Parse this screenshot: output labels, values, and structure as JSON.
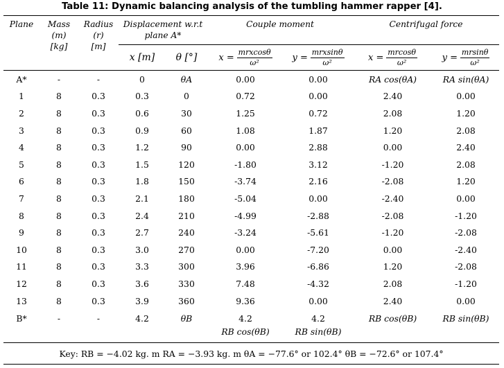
{
  "title": "Table 11: Dynamic balancing analysis of the tumbling hammer rapper [4].",
  "header": {
    "plane": "Plane",
    "mass": "Mass",
    "mass_sym": "(m)",
    "mass_unit": "[kg]",
    "radius": "Radius",
    "radius_sym": "(r)",
    "radius_unit": "[m]",
    "displacement": "Displacement w.r.t",
    "displacement2": "plane A*",
    "couple": "Couple moment",
    "centrifugal": "Centrifugal force",
    "x_label": "x [m]",
    "theta_label": "θ [°]",
    "cm_x_lhs": "x =",
    "cm_x_num": "mrxcosθ",
    "cm_y_lhs": "y =",
    "cm_y_num": "mrxsinθ",
    "den": "ω²",
    "cf_x_lhs": "x =",
    "cf_x_num": "mrcosθ",
    "cf_y_lhs": "y =",
    "cf_y_num": "mrsinθ"
  },
  "rows": [
    [
      "A*",
      "-",
      "-",
      "0",
      "θA",
      "0.00",
      "0.00",
      "RA cos(θA)",
      "RA sin(θA)"
    ],
    [
      "1",
      "8",
      "0.3",
      "0.3",
      "0",
      "0.72",
      "0.00",
      "2.40",
      "0.00"
    ],
    [
      "2",
      "8",
      "0.3",
      "0.6",
      "30",
      "1.25",
      "0.72",
      "2.08",
      "1.20"
    ],
    [
      "3",
      "8",
      "0.3",
      "0.9",
      "60",
      "1.08",
      "1.87",
      "1.20",
      "2.08"
    ],
    [
      "4",
      "8",
      "0.3",
      "1.2",
      "90",
      "0.00",
      "2.88",
      "0.00",
      "2.40"
    ],
    [
      "5",
      "8",
      "0.3",
      "1.5",
      "120",
      "-1.80",
      "3.12",
      "-1.20",
      "2.08"
    ],
    [
      "6",
      "8",
      "0.3",
      "1.8",
      "150",
      "-3.74",
      "2.16",
      "-2.08",
      "1.20"
    ],
    [
      "7",
      "8",
      "0.3",
      "2.1",
      "180",
      "-5.04",
      "0.00",
      "-2.40",
      "0.00"
    ],
    [
      "8",
      "8",
      "0.3",
      "2.4",
      "210",
      "-4.99",
      "-2.88",
      "-2.08",
      "-1.20"
    ],
    [
      "9",
      "8",
      "0.3",
      "2.7",
      "240",
      "-3.24",
      "-5.61",
      "-1.20",
      "-2.08"
    ],
    [
      "10",
      "8",
      "0.3",
      "3.0",
      "270",
      "0.00",
      "-7.20",
      "0.00",
      "-2.40"
    ],
    [
      "11",
      "8",
      "0.3",
      "3.3",
      "300",
      "3.96",
      "-6.86",
      "1.20",
      "-2.08"
    ],
    [
      "12",
      "8",
      "0.3",
      "3.6",
      "330",
      "7.48",
      "-4.32",
      "2.08",
      "-1.20"
    ],
    [
      "13",
      "8",
      "0.3",
      "3.9",
      "360",
      "9.36",
      "0.00",
      "2.40",
      "0.00"
    ]
  ],
  "brow": {
    "plane": "B*",
    "mass": "-",
    "radius": "-",
    "x": "4.2",
    "theta": "θB",
    "cm_x_val": "4.2",
    "cm_x_expr": "RB cos(θB)",
    "cm_y_val": "4.2",
    "cm_y_expr": "RB sin(θB)",
    "cf_x": "RB cos(θB)",
    "cf_y": "RB sin(θB)"
  },
  "key": "Key: RB = −4.02 kg. m  RA = −3.93 kg. m θA = −77.6° or 102.4° θB = −72.6° or 107.4°"
}
